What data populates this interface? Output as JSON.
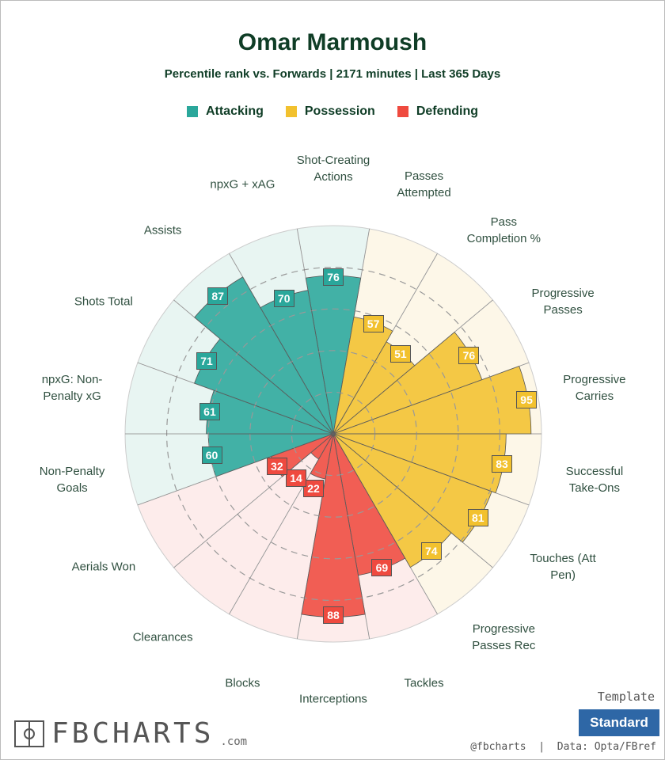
{
  "chart_data": {
    "type": "polar_bar",
    "title": "Omar Marmoush",
    "subtitle": "Percentile rank vs. Forwards | 2171 minutes | Last 365 Days",
    "categories": [
      "Shot-Creating\nActions",
      "Passes\nAttempted",
      "Pass\nCompletion %",
      "Progressive\nPasses",
      "Progressive\nCarries",
      "Successful\nTake-Ons",
      "Touches (Att\nPen)",
      "Progressive\nPasses Rec",
      "Tackles",
      "Interceptions",
      "Blocks",
      "Clearances",
      "Aerials Won",
      "Non-Penalty\nGoals",
      "npxG: Non-\nPenalty xG",
      "Shots Total",
      "Assists",
      "npxG + xAG"
    ],
    "series": [
      {
        "name": "Attacking",
        "color": "#2aa79b",
        "values": [
          76,
          null,
          null,
          null,
          null,
          null,
          null,
          null,
          null,
          null,
          null,
          null,
          null,
          60,
          61,
          71,
          87,
          70
        ]
      },
      {
        "name": "Possession",
        "color": "#f2c12e",
        "values": [
          null,
          57,
          51,
          76,
          95,
          83,
          81,
          74,
          null,
          null,
          null,
          null,
          null,
          null,
          null,
          null,
          null,
          null
        ]
      },
      {
        "name": "Defending",
        "color": "#ef4a3f",
        "values": [
          null,
          null,
          null,
          null,
          null,
          null,
          null,
          null,
          69,
          88,
          22,
          14,
          32,
          null,
          null,
          null,
          null,
          null
        ]
      }
    ],
    "rlim": [
      0,
      100
    ],
    "rticks": [
      20,
      40,
      60,
      80
    ],
    "template_label": "Template",
    "template_button": "Standard",
    "logo": "FBCHARTS",
    "logo_suffix": ".com",
    "footer": "@fbcharts  |  Data: Opta/FBref"
  }
}
